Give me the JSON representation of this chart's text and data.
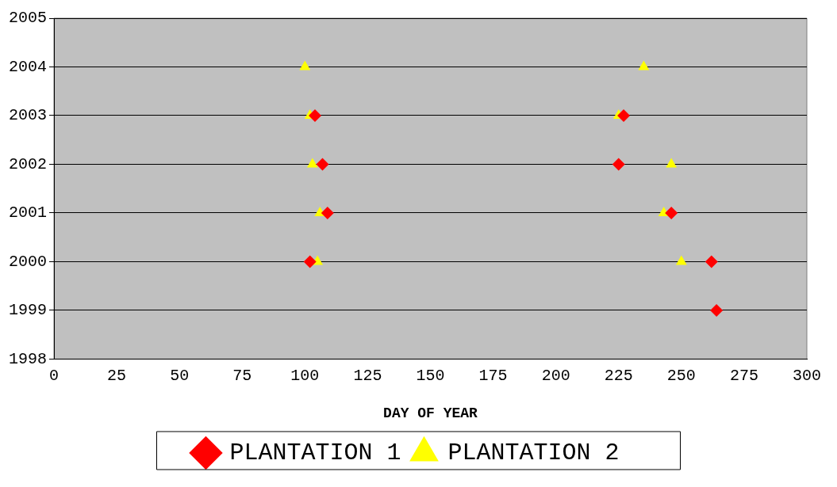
{
  "chart_data": {
    "type": "scatter",
    "xlabel": "DAY OF YEAR",
    "xlim": [
      0,
      300
    ],
    "xticks": [
      0,
      25,
      50,
      75,
      100,
      125,
      150,
      175,
      200,
      225,
      250,
      275,
      300
    ],
    "ylim": [
      1998,
      2005
    ],
    "yticks": [
      1998,
      1999,
      2000,
      2001,
      2002,
      2003,
      2004,
      2005
    ],
    "grid": "y",
    "legend": "bottom",
    "series": [
      {
        "name": "PLANTATION 1",
        "color": "#ff0000",
        "marker": "diamond",
        "x": [
          104,
          107,
          109,
          102,
          227,
          225,
          246,
          262,
          264
        ],
        "values": [
          2003,
          2002,
          2001,
          2000,
          2003,
          2002,
          2001,
          2000,
          1999
        ]
      },
      {
        "name": "PLANTATION 2",
        "color": "#ffff00",
        "marker": "triangle",
        "x": [
          100,
          102,
          103,
          106,
          105,
          235,
          225,
          246,
          243,
          250
        ],
        "values": [
          2004,
          2003,
          2002,
          2001,
          2000,
          2004,
          2003,
          2002,
          2001,
          2000
        ]
      }
    ]
  }
}
